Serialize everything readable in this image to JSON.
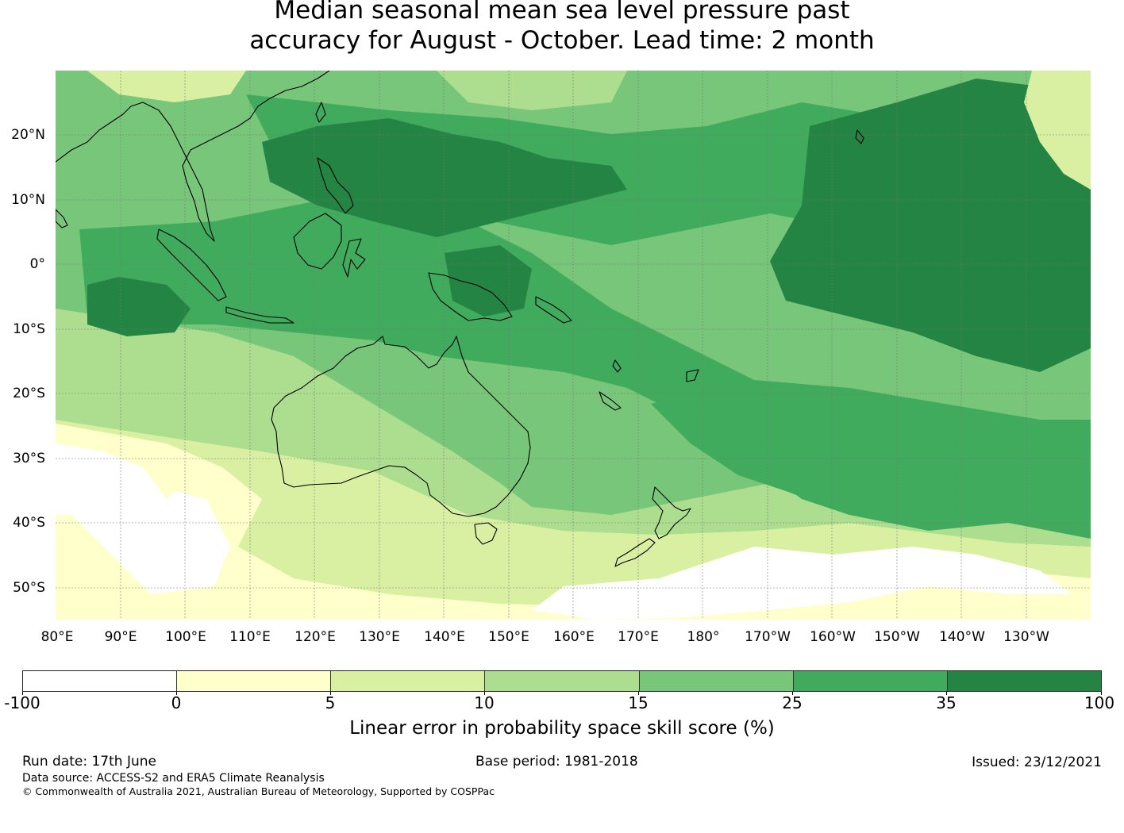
{
  "title_line1": "Median seasonal mean sea level pressure past",
  "title_line2": "accuracy for August - October. Lead time: 2 month",
  "lat_labels": [
    "20°N",
    "10°N",
    "0°",
    "10°S",
    "20°S",
    "30°S",
    "40°S",
    "50°S"
  ],
  "lon_labels": [
    "80°E",
    "90°E",
    "100°E",
    "110°E",
    "120°E",
    "130°E",
    "140°E",
    "150°E",
    "160°E",
    "170°E",
    "180°",
    "170°W",
    "160°W",
    "150°W",
    "140°W",
    "130°W"
  ],
  "colorbar": {
    "title": "Linear error in probability space skill score (%)",
    "boundaries": [
      "-100",
      "0",
      "5",
      "10",
      "15",
      "25",
      "35",
      "100"
    ],
    "colors": [
      "#ffffff",
      "#ffffcc",
      "#d9f0a3",
      "#addd8e",
      "#78c679",
      "#41ab5d",
      "#238443"
    ]
  },
  "footer": {
    "run_date": "Run date: 17th June",
    "base_period": "Base period: 1981-2018",
    "issued": "Issued: 23/12/2021",
    "data_source": "Data source: ACCESS-S2 and ERA5 Climate Reanalysis",
    "copyright": "© Commonwealth of Australia 2021, Australian Bureau of Meteorology, Supported by COSPPac"
  }
}
